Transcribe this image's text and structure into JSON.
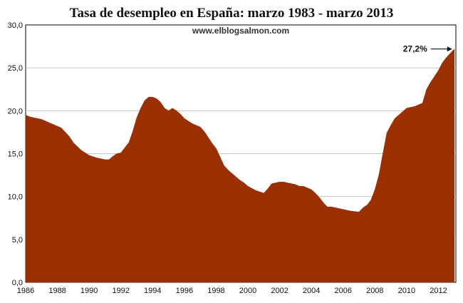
{
  "chart_data": {
    "type": "area",
    "title": "Tasa de desempleo en España: marzo 1983 - marzo 2013",
    "source_label": "www.elblogsalmon.com",
    "xlabel": "",
    "ylabel": "",
    "xlim": [
      1986,
      2013.1
    ],
    "ylim": [
      0,
      30
    ],
    "x_ticks": [
      "1986",
      "1988",
      "1990",
      "1992",
      "1994",
      "1996",
      "1998",
      "2000",
      "2002",
      "2004",
      "2006",
      "2008",
      "2010",
      "2012"
    ],
    "y_ticks": [
      "0,0",
      "5,0",
      "10,0",
      "15,0",
      "20,0",
      "25,0",
      "30,0"
    ],
    "grid": true,
    "fill_color": "#9a2f00",
    "annotation": {
      "text": "27,2%",
      "x": 2013.0,
      "y": 27.2
    },
    "x": [
      1986.0,
      1986.25,
      1986.5,
      1987.0,
      1987.5,
      1987.75,
      1988.0,
      1988.25,
      1988.5,
      1988.75,
      1989.0,
      1989.5,
      1989.75,
      1990.0,
      1990.5,
      1991.0,
      1991.25,
      1991.5,
      1991.75,
      1992.0,
      1992.5,
      1992.75,
      1993.0,
      1993.25,
      1993.5,
      1993.75,
      1994.0,
      1994.25,
      1994.5,
      1994.75,
      1995.0,
      1995.25,
      1995.5,
      1995.75,
      1996.0,
      1996.5,
      1997.0,
      1997.25,
      1997.5,
      1997.75,
      1998.0,
      1998.25,
      1998.5,
      1998.75,
      1999.0,
      1999.25,
      1999.5,
      1999.75,
      2000.0,
      2000.5,
      2001.0,
      2001.25,
      2001.5,
      2001.75,
      2002.0,
      2002.25,
      2002.5,
      2002.75,
      2003.0,
      2003.25,
      2003.5,
      2004.0,
      2004.25,
      2004.5,
      2004.75,
      2005.0,
      2005.25,
      2005.5,
      2005.75,
      2006.0,
      2006.5,
      2007.0,
      2007.25,
      2007.5,
      2007.75,
      2008.0,
      2008.25,
      2008.5,
      2008.75,
      2009.0,
      2009.25,
      2009.5,
      2009.75,
      2010.0,
      2010.5,
      2011.0,
      2011.25,
      2011.5,
      2011.75,
      2012.0,
      2012.25,
      2012.5,
      2012.75,
      2013.0
    ],
    "values": [
      19.5,
      19.3,
      19.2,
      19.0,
      18.6,
      18.4,
      18.2,
      18.0,
      17.5,
      17.0,
      16.3,
      15.4,
      15.1,
      14.8,
      14.5,
      14.3,
      14.3,
      14.7,
      15.0,
      15.1,
      16.3,
      17.6,
      19.2,
      20.3,
      21.2,
      21.6,
      21.6,
      21.4,
      21.0,
      20.3,
      20.0,
      20.3,
      20.0,
      19.6,
      19.1,
      18.5,
      18.1,
      17.6,
      16.9,
      16.2,
      15.6,
      14.6,
      13.6,
      13.1,
      12.7,
      12.3,
      11.9,
      11.6,
      11.2,
      10.7,
      10.4,
      10.9,
      11.5,
      11.6,
      11.7,
      11.7,
      11.6,
      11.5,
      11.4,
      11.2,
      11.2,
      10.8,
      10.4,
      9.9,
      9.3,
      8.8,
      8.8,
      8.7,
      8.6,
      8.5,
      8.3,
      8.2,
      8.7,
      9.0,
      9.6,
      10.8,
      12.5,
      15.0,
      17.4,
      18.3,
      19.1,
      19.5,
      19.9,
      20.3,
      20.5,
      20.9,
      22.5,
      23.3,
      24.0,
      24.7,
      25.6,
      26.2,
      26.7,
      27.2
    ]
  }
}
